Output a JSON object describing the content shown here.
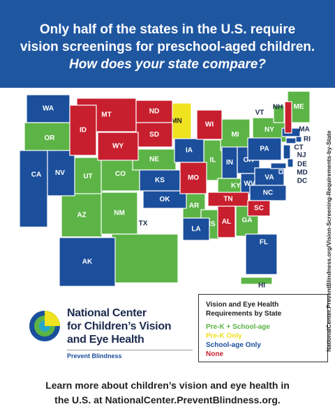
{
  "header": {
    "title": [
      "Only half of the states in the U.S. require",
      "vision screenings for preschool-aged children."
    ],
    "subtitle": "How does your state compare?"
  },
  "legend": {
    "title": "Vision and Eye Health Requirements by State",
    "items": [
      {
        "label": "Pre-K + School-age",
        "color": "#5cb446",
        "states": [
          "OR",
          "UT",
          "CO",
          "AZ",
          "NM",
          "TX",
          "NE",
          "AR",
          "MS",
          "IL",
          "MI",
          "KY",
          "GA",
          "NY",
          "VT",
          "ME",
          "HI"
        ]
      },
      {
        "label": "Pre-K Only",
        "color": "#efe21e",
        "states": [
          "MN"
        ]
      },
      {
        "label": "School-age Only",
        "color": "#1b4f9c",
        "states": [
          "WA",
          "NV",
          "CA",
          "AK",
          "KS",
          "OK",
          "LA",
          "IA",
          "IN",
          "OH",
          "WV",
          "VA",
          "NC",
          "PA",
          "FL",
          "NJ",
          "CT",
          "RI",
          "MA",
          "DE",
          "MD",
          "DC"
        ]
      },
      {
        "label": "None",
        "color": "#c81f2e",
        "states": [
          "MT",
          "ND",
          "SD",
          "WY",
          "ID",
          "WI",
          "MO",
          "TN",
          "AL",
          "SC",
          "NH"
        ]
      }
    ]
  },
  "logo": {
    "name": [
      "National Center",
      "for Children’s Vision",
      "and Eye Health"
    ],
    "tagline": "Prevent Blindness"
  },
  "footer": {
    "text": [
      "Learn more about children’s vision and eye health in",
      "the U.S. at NationalCenter.PreventBlindness.org."
    ]
  },
  "side_text": "NationalCenter.PreventBlindness.org/Vision-Screening-Requirements-by-State"
}
